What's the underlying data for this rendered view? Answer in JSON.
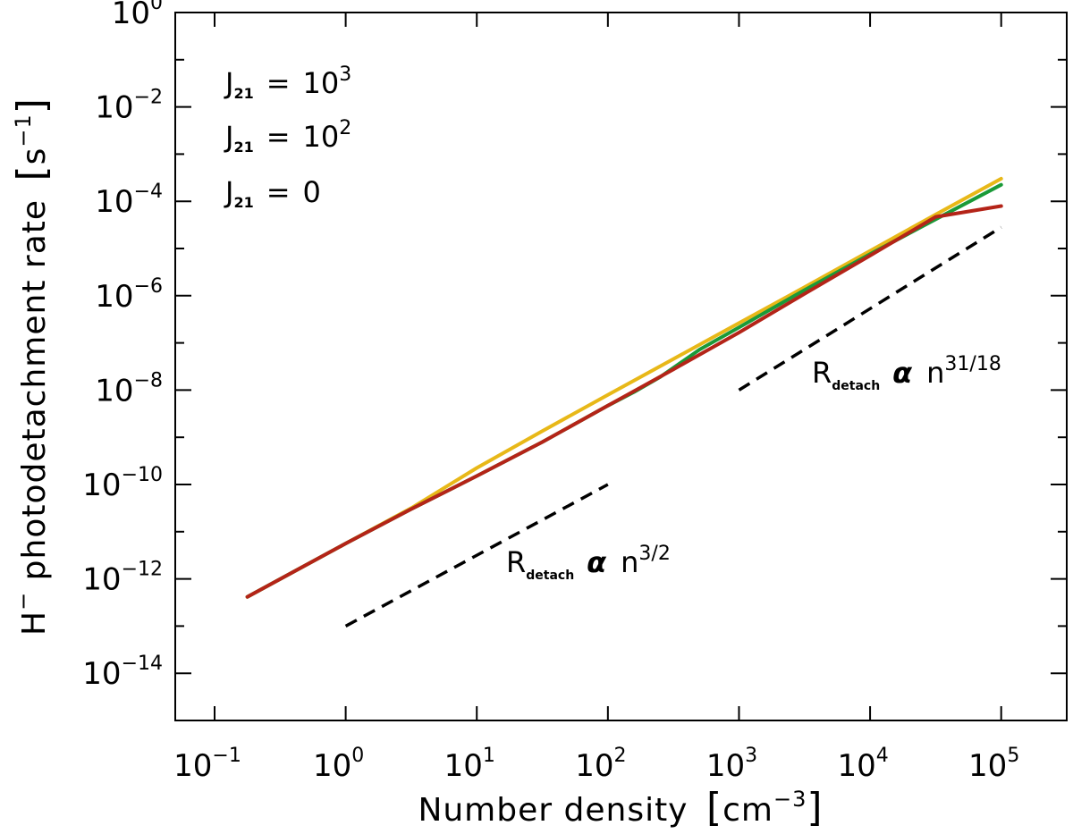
{
  "chart_data": {
    "type": "line",
    "title": "",
    "xlabel": "Number density",
    "xlabel_unit": "cm",
    "xlabel_unit_exp": "−3",
    "ylabel": "H",
    "ylabel_sup": "−",
    "ylabel_rest": " photodetachment rate",
    "ylabel_unit": "s",
    "ylabel_unit_exp": "−1",
    "xscale": "log",
    "yscale": "log",
    "xlim_exp": [
      -1.3,
      5.5
    ],
    "ylim_exp": [
      -15,
      0
    ],
    "x_ticks": [
      {
        "base": "10",
        "exp": "−1",
        "value_exp": -1
      },
      {
        "base": "10",
        "exp": "0",
        "value_exp": 0
      },
      {
        "base": "10",
        "exp": "1",
        "value_exp": 1
      },
      {
        "base": "10",
        "exp": "2",
        "value_exp": 2
      },
      {
        "base": "10",
        "exp": "3",
        "value_exp": 3
      },
      {
        "base": "10",
        "exp": "4",
        "value_exp": 4
      },
      {
        "base": "10",
        "exp": "5",
        "value_exp": 5
      }
    ],
    "y_ticks": [
      {
        "base": "10",
        "exp": "0",
        "value_exp": 0
      },
      {
        "base": "10",
        "exp": "−2",
        "value_exp": -2
      },
      {
        "base": "10",
        "exp": "−4",
        "value_exp": -4
      },
      {
        "base": "10",
        "exp": "−6",
        "value_exp": -6
      },
      {
        "base": "10",
        "exp": "−8",
        "value_exp": -8
      },
      {
        "base": "10",
        "exp": "−10",
        "value_exp": -10
      },
      {
        "base": "10",
        "exp": "−12",
        "value_exp": -12
      },
      {
        "base": "10",
        "exp": "−14",
        "value_exp": -14
      }
    ],
    "series": [
      {
        "name": "J21 = 0",
        "color": "#e8b818",
        "log_x": [
          -0.75,
          0,
          0.5,
          1,
          1.5,
          2,
          2.5,
          3,
          3.5,
          4,
          4.5,
          5
        ],
        "log_y": [
          -12.38,
          -11.25,
          -10.5,
          -9.65,
          -8.87,
          -8.1,
          -7.34,
          -6.58,
          -5.82,
          -5.05,
          -4.28,
          -3.52
        ]
      },
      {
        "name": "J21 = 10^2",
        "color": "#1a9a38",
        "log_x": [
          -0.75,
          0,
          0.5,
          1,
          1.5,
          2,
          2.2,
          2.4,
          2.7,
          3,
          3.5,
          4,
          4.5,
          5
        ],
        "log_y": [
          -12.38,
          -11.25,
          -10.52,
          -9.82,
          -9.1,
          -8.33,
          -8.04,
          -7.72,
          -7.14,
          -6.67,
          -5.88,
          -5.12,
          -4.38,
          -3.65
        ]
      },
      {
        "name": "J21 = 10^3",
        "color": "#b42418",
        "log_x": [
          -0.75,
          0,
          0.5,
          1,
          1.5,
          2,
          2.5,
          3,
          3.5,
          4,
          4.5,
          5
        ],
        "log_y": [
          -12.38,
          -11.25,
          -10.52,
          -9.82,
          -9.1,
          -8.33,
          -7.56,
          -6.78,
          -5.96,
          -5.15,
          -4.33,
          -4.1
        ]
      }
    ],
    "reference_lines": [
      {
        "name": "n^3/2",
        "log_x": [
          0,
          2
        ],
        "log_y": [
          -13.0,
          -10.0
        ],
        "style": "dashed",
        "color": "#000000"
      },
      {
        "name": "n^31/18",
        "log_x": [
          3,
          5
        ],
        "log_y": [
          -8.0,
          -4.55
        ],
        "style": "dashed",
        "color": "#000000"
      }
    ],
    "legend": [
      {
        "label": "J",
        "sub": "21",
        "op": "=",
        "value": "10",
        "exp": "3",
        "color": "#b42418"
      },
      {
        "label": "J",
        "sub": "21",
        "op": "=",
        "value": "10",
        "exp": "2",
        "color": "#1a9a38"
      },
      {
        "label": "J",
        "sub": "21",
        "op": "=",
        "value": "0",
        "exp": "",
        "color": "#e8b818"
      }
    ],
    "annotations": [
      {
        "r": "R",
        "sub": "detach",
        "alpha": "α",
        "n": "n",
        "exp": "3/2"
      },
      {
        "r": "R",
        "sub": "detach",
        "alpha": "α",
        "n": "n",
        "exp": "31/18"
      }
    ]
  }
}
